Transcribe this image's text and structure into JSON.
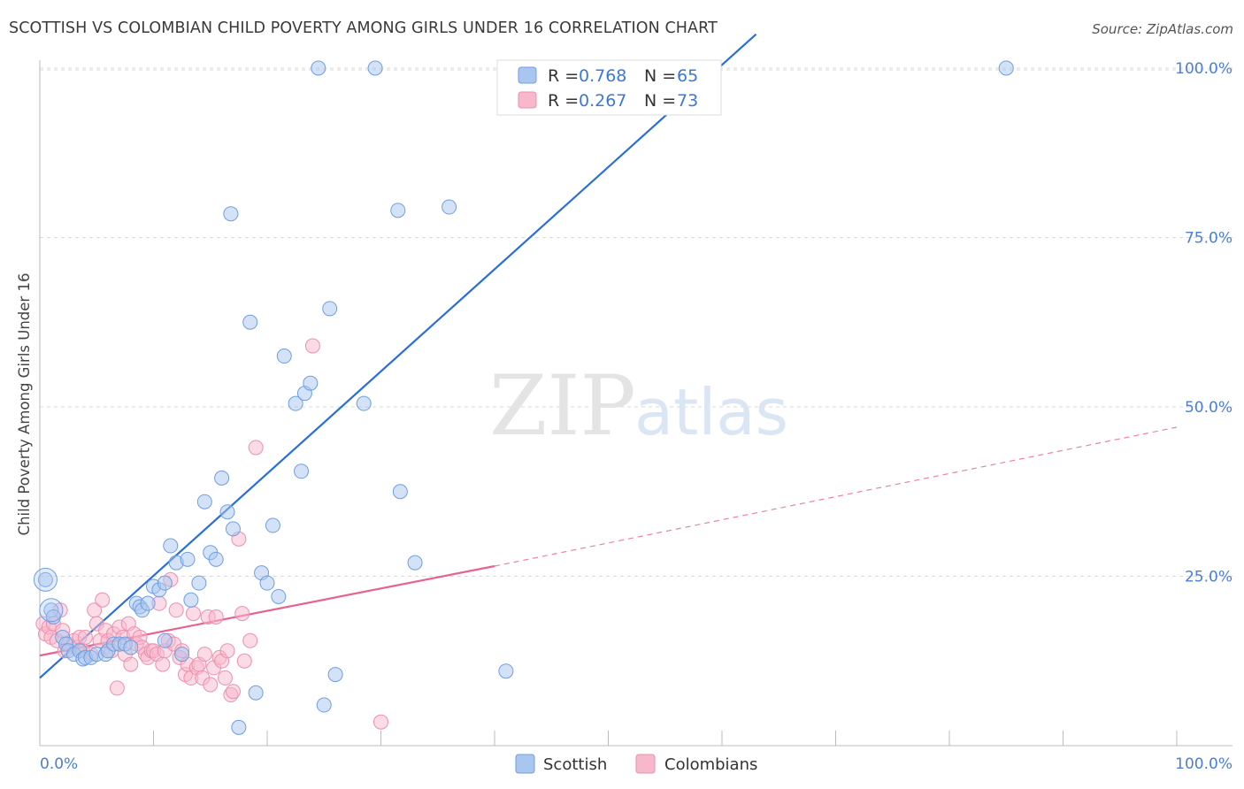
{
  "title": "SCOTTISH VS COLOMBIAN CHILD POVERTY AMONG GIRLS UNDER 16 CORRELATION CHART",
  "source": "Source: ZipAtlas.com",
  "watermark": {
    "zip": "ZIP",
    "atlas": "atlas"
  },
  "colors": {
    "scottish_fill": "#a9c6f0",
    "scottish_stroke": "#6f9fe0",
    "scottish_line": "#2a6fd6",
    "colombian_fill": "#f7b8cb",
    "colombian_stroke": "#ee8fae",
    "colombian_line": "#e8628f",
    "axis_label": "#4a7fd4",
    "grid": "#d8d8d8"
  },
  "legend": {
    "rows": [
      {
        "r_label": "R = ",
        "r_value": "0.768",
        "n_label": "N = ",
        "n_value": "65"
      },
      {
        "r_label": "R = ",
        "r_value": "0.267",
        "n_label": "N = ",
        "n_value": "73"
      }
    ]
  },
  "chart_data": {
    "type": "scatter",
    "title": "SCOTTISH VS COLOMBIAN CHILD POVERTY AMONG GIRLS UNDER 16 CORRELATION CHART",
    "xlabel": "",
    "ylabel": "Child Poverty Among Girls Under 16",
    "xlim": [
      0,
      100
    ],
    "ylim": [
      0,
      102
    ],
    "x_tick_labels": [
      "0.0%",
      "100.0%"
    ],
    "y_ticks": [
      25,
      50,
      75,
      100
    ],
    "y_tick_labels": [
      "25.0%",
      "50.0%",
      "75.0%",
      "100.0%"
    ],
    "grid": true,
    "legend_position": "top-center",
    "series": [
      {
        "name": "Scottish",
        "points": [
          [
            0.5,
            24.5
          ],
          [
            1,
            20
          ],
          [
            1.2,
            19
          ],
          [
            2,
            16
          ],
          [
            2.3,
            15
          ],
          [
            2.5,
            14
          ],
          [
            3,
            13.5
          ],
          [
            3.5,
            14
          ],
          [
            3.8,
            12.8
          ],
          [
            4,
            13
          ],
          [
            4.5,
            13
          ],
          [
            5,
            13.5
          ],
          [
            5.8,
            13.5
          ],
          [
            6,
            14
          ],
          [
            6.5,
            15
          ],
          [
            7,
            15
          ],
          [
            7.5,
            15
          ],
          [
            8,
            14.5
          ],
          [
            8.5,
            21
          ],
          [
            8.8,
            20.5
          ],
          [
            9,
            20
          ],
          [
            9.5,
            21
          ],
          [
            10,
            23.5
          ],
          [
            10.5,
            23
          ],
          [
            11,
            24
          ],
          [
            11,
            15.5
          ],
          [
            11.5,
            29.5
          ],
          [
            12,
            27
          ],
          [
            12.5,
            13.5
          ],
          [
            13,
            27.5
          ],
          [
            13.3,
            21.5
          ],
          [
            14,
            24
          ],
          [
            14.5,
            36
          ],
          [
            15,
            28.5
          ],
          [
            15.5,
            27.5
          ],
          [
            16,
            39.5
          ],
          [
            16.5,
            34.5
          ],
          [
            16.8,
            78.5
          ],
          [
            17,
            32
          ],
          [
            17.5,
            2.7
          ],
          [
            18.5,
            62.5
          ],
          [
            19,
            7.8
          ],
          [
            19.5,
            25.5
          ],
          [
            20,
            24
          ],
          [
            20.5,
            32.5
          ],
          [
            21,
            22
          ],
          [
            21.5,
            57.5
          ],
          [
            22.5,
            50.5
          ],
          [
            23,
            40.5
          ],
          [
            23.3,
            52
          ],
          [
            23.8,
            53.5
          ],
          [
            25,
            6
          ],
          [
            25.5,
            64.5
          ],
          [
            26,
            10.5
          ],
          [
            28.5,
            50.5
          ],
          [
            31.5,
            79
          ],
          [
            31.7,
            37.5
          ],
          [
            33,
            27
          ],
          [
            36,
            79.5
          ],
          [
            41,
            11
          ],
          [
            24.5,
            100
          ],
          [
            29.5,
            100
          ],
          [
            47,
            100
          ],
          [
            57,
            100
          ],
          [
            85,
            100
          ]
        ],
        "regression": {
          "x0": 0,
          "y0": 10,
          "x1": 63,
          "y1": 105
        }
      },
      {
        "name": "Colombians",
        "points": [
          [
            0.3,
            18
          ],
          [
            0.5,
            16.5
          ],
          [
            0.8,
            17.5
          ],
          [
            1,
            16
          ],
          [
            1.2,
            18
          ],
          [
            1.5,
            15.5
          ],
          [
            1.8,
            20
          ],
          [
            2,
            17
          ],
          [
            2.2,
            14
          ],
          [
            2.5,
            15
          ],
          [
            3,
            15.5
          ],
          [
            3.3,
            14.5
          ],
          [
            3.5,
            16
          ],
          [
            3.8,
            14
          ],
          [
            4,
            16
          ],
          [
            4.5,
            13.5
          ],
          [
            4.8,
            20
          ],
          [
            5,
            18
          ],
          [
            5.3,
            15.5
          ],
          [
            5.5,
            21.5
          ],
          [
            5.8,
            17
          ],
          [
            6,
            15.5
          ],
          [
            6.3,
            14
          ],
          [
            6.5,
            16.5
          ],
          [
            6.8,
            8.5
          ],
          [
            7,
            17.5
          ],
          [
            7.3,
            16
          ],
          [
            7.5,
            13.5
          ],
          [
            7.8,
            18
          ],
          [
            8,
            12
          ],
          [
            8.3,
            16.5
          ],
          [
            8.5,
            15
          ],
          [
            8.8,
            16
          ],
          [
            9,
            14.5
          ],
          [
            9.3,
            13.5
          ],
          [
            9.5,
            13
          ],
          [
            9.8,
            14
          ],
          [
            10,
            14
          ],
          [
            10.3,
            13.5
          ],
          [
            10.5,
            21
          ],
          [
            10.8,
            12
          ],
          [
            11,
            14
          ],
          [
            11.3,
            15.5
          ],
          [
            11.5,
            24.5
          ],
          [
            11.8,
            15
          ],
          [
            12,
            20
          ],
          [
            12.3,
            13
          ],
          [
            12.5,
            14
          ],
          [
            12.8,
            10.5
          ],
          [
            13,
            12
          ],
          [
            13.3,
            10
          ],
          [
            13.5,
            19.5
          ],
          [
            13.8,
            11.5
          ],
          [
            14,
            12
          ],
          [
            14.3,
            10
          ],
          [
            14.5,
            13.5
          ],
          [
            14.8,
            19
          ],
          [
            15,
            9
          ],
          [
            15.3,
            11.5
          ],
          [
            15.5,
            19
          ],
          [
            15.8,
            13
          ],
          [
            16,
            12.5
          ],
          [
            16.3,
            10
          ],
          [
            16.5,
            14
          ],
          [
            16.8,
            7.5
          ],
          [
            17,
            8
          ],
          [
            17.5,
            30.5
          ],
          [
            17.8,
            19.5
          ],
          [
            18,
            12.5
          ],
          [
            18.5,
            15.5
          ],
          [
            19,
            44
          ],
          [
            24,
            59
          ],
          [
            30,
            3.5
          ]
        ],
        "regression": {
          "x0": 0,
          "y0": 13.3,
          "x1": 40,
          "y1": 26.5
        },
        "regression_extension": {
          "x0": 40,
          "y0": 26.5,
          "x1": 100,
          "y1": 47
        }
      }
    ]
  }
}
